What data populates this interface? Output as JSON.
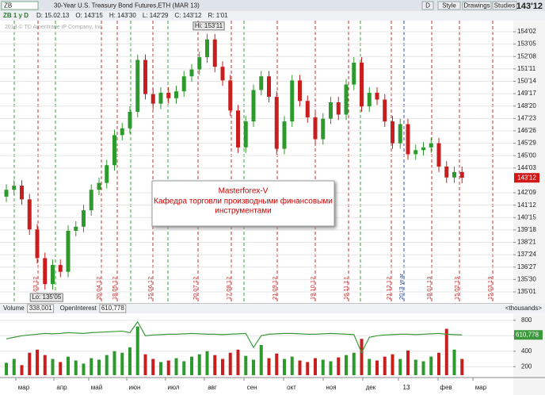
{
  "toolbar": {
    "symbol": "ZB",
    "description": "30-Year U.S. Treasury Bond Futures,ETH (MAR 13)",
    "buttons": [
      "D",
      "Style",
      "Drawings",
      "Studies"
    ],
    "last": "143'12"
  },
  "info": {
    "symbol": "ZB 1 y D",
    "items": [
      "D: 15.02.13",
      "O: 143'15",
      "H: 143'30",
      "L: 142'29",
      "C: 143'12",
      "R: 1'01"
    ]
  },
  "watermark": "2013 © TD Ameritrade IP Company, Inc.",
  "annotation": [
    "Masterforex-V",
    "Кафедра торговли производными финансовыми",
    "инструментами"
  ],
  "chart_data": [
    {
      "type": "candlestick",
      "open": [
        142.0,
        142.5,
        142.8,
        141.8,
        139.6,
        137.5,
        135.6,
        137.0,
        136.5,
        139.5,
        139.8,
        141.0,
        142.5,
        143.0,
        144.3,
        146.5,
        147.0,
        148.2,
        152.0,
        149.5,
        148.8,
        149.6,
        149.2,
        149.7,
        150.8,
        151.3,
        152.2,
        153.5,
        151.5,
        150.5,
        148.3,
        145.6,
        147.5,
        149.8,
        150.8,
        149.3,
        145.5,
        147.5,
        150.5,
        149.0,
        147.8,
        146.2,
        147.7,
        148.9,
        148.0,
        150.2,
        151.8,
        148.6,
        149.6,
        149.1,
        147.5,
        145.9,
        147.3,
        145.1,
        145.4,
        145.6,
        145.9,
        144.2,
        143.4,
        143.8
      ],
      "high": [
        142.9,
        143.2,
        143.2,
        142.2,
        140.0,
        137.9,
        137.4,
        137.4,
        139.9,
        140.2,
        141.4,
        142.9,
        143.4,
        144.7,
        146.9,
        147.4,
        148.6,
        152.4,
        152.4,
        149.9,
        150.0,
        150.0,
        150.1,
        151.2,
        151.7,
        152.6,
        153.9,
        153.9,
        151.9,
        150.9,
        148.7,
        147.9,
        150.2,
        151.2,
        151.2,
        149.7,
        147.9,
        150.9,
        150.9,
        149.4,
        148.2,
        148.1,
        149.3,
        149.3,
        150.6,
        152.2,
        152.2,
        150.0,
        150.0,
        149.5,
        147.9,
        147.7,
        147.7,
        145.8,
        146.0,
        146.3,
        146.3,
        144.6,
        144.2,
        144.2
      ],
      "low": [
        141.6,
        142.1,
        141.4,
        139.2,
        137.1,
        135.2,
        135.2,
        136.1,
        136.1,
        139.1,
        139.4,
        140.6,
        142.1,
        142.6,
        143.9,
        146.1,
        146.6,
        147.8,
        149.1,
        148.4,
        148.4,
        148.8,
        148.8,
        149.3,
        150.4,
        150.9,
        151.8,
        151.1,
        150.1,
        147.9,
        145.2,
        145.2,
        147.1,
        149.4,
        148.9,
        145.1,
        145.1,
        147.1,
        148.6,
        147.4,
        145.8,
        145.8,
        147.3,
        147.6,
        147.6,
        149.8,
        148.2,
        148.2,
        148.7,
        147.1,
        145.5,
        145.5,
        144.7,
        144.7,
        145.0,
        145.2,
        143.8,
        143.0,
        143.0,
        142.98
      ],
      "close": [
        142.5,
        142.8,
        141.8,
        139.6,
        137.5,
        135.6,
        137.0,
        136.5,
        139.5,
        139.8,
        141.0,
        142.5,
        143.0,
        144.3,
        146.5,
        147.0,
        148.2,
        152.0,
        149.5,
        148.8,
        149.6,
        149.2,
        149.7,
        150.8,
        151.3,
        152.2,
        153.5,
        151.5,
        150.5,
        148.3,
        145.6,
        147.5,
        149.8,
        150.8,
        149.3,
        145.5,
        147.5,
        150.5,
        149.0,
        147.8,
        146.2,
        147.7,
        148.9,
        148.0,
        150.2,
        151.8,
        148.6,
        149.6,
        149.1,
        147.5,
        145.9,
        147.3,
        145.1,
        145.4,
        145.6,
        145.9,
        144.2,
        143.4,
        143.8,
        143.38
      ],
      "up_color": "#2e9a2e",
      "down_color": "#c81e1e",
      "ylim": [
        134.16,
        154.875
      ],
      "yticks": [
        {
          "value": 154.0625,
          "label": "154'02"
        },
        {
          "value": 153.15625,
          "label": "153'05"
        },
        {
          "value": 152.25,
          "label": "152'08"
        },
        {
          "value": 151.34375,
          "label": "151'11"
        },
        {
          "value": 150.4375,
          "label": "150'14"
        },
        {
          "value": 149.53125,
          "label": "149'17"
        },
        {
          "value": 148.625,
          "label": "148'20"
        },
        {
          "value": 147.71875,
          "label": "147'23"
        },
        {
          "value": 146.8125,
          "label": "146'26"
        },
        {
          "value": 145.90625,
          "label": "145'29"
        },
        {
          "value": 145.0,
          "label": "145'00"
        },
        {
          "value": 144.09375,
          "label": "144'03"
        },
        {
          "value": 142.28125,
          "label": "142'09"
        },
        {
          "value": 141.375,
          "label": "141'12"
        },
        {
          "value": 140.46875,
          "label": "140'15"
        },
        {
          "value": 139.5625,
          "label": "139'18"
        },
        {
          "value": 138.65625,
          "label": "138'21"
        },
        {
          "value": 137.75,
          "label": "137'24"
        },
        {
          "value": 136.84375,
          "label": "136'27"
        },
        {
          "value": 135.9375,
          "label": "135'30"
        },
        {
          "value": 135.03125,
          "label": "135'01"
        }
      ],
      "last_price": {
        "value": 143.375,
        "label": "143'12"
      },
      "extremes": [
        "Hi: 153'11",
        "Lo: 135'05"
      ],
      "markers": [
        "16.03.12",
        "20.04.12",
        "18.05.12",
        "15.06.12",
        "20.07.12",
        "17.08.12",
        "21.09.12",
        "19.10.12",
        "16.11.12",
        "21.12.12",
        "2013 year",
        "18.01.13",
        "15.02.13",
        "15.03.13"
      ]
    },
    {
      "type": "bar",
      "series": [
        {
          "name": "Volume",
          "last_label": "338,001",
          "up_color": "#2e9a2e",
          "down_color": "#c81e1e",
          "values": [
            250,
            300,
            220,
            380,
            420,
            350,
            300,
            260,
            330,
            280,
            240,
            310,
            290,
            350,
            400,
            380,
            450,
            720,
            360,
            300,
            260,
            280,
            310,
            270,
            330,
            360,
            400,
            350,
            300,
            380,
            420,
            340,
            290,
            480,
            310,
            370,
            300,
            330,
            280,
            260,
            310,
            290,
            270,
            320,
            350,
            380,
            560,
            300,
            280,
            330,
            360,
            300,
            410,
            290,
            270,
            330,
            380,
            690,
            420,
            300
          ]
        },
        {
          "name": "OpenInterest",
          "last_label": "610,778",
          "color": "#3c9a3c",
          "values": [
            560,
            580,
            600,
            610,
            620,
            630,
            625,
            630,
            640,
            635,
            630,
            640,
            645,
            650,
            655,
            660,
            640,
            780,
            600,
            610,
            615,
            620,
            620,
            625,
            630,
            625,
            620,
            620,
            615,
            620,
            625,
            630,
            450,
            600,
            620,
            625,
            630,
            630,
            625,
            620,
            620,
            625,
            630,
            625,
            620,
            615,
            380,
            580,
            600,
            610,
            615,
            620,
            620,
            615,
            620,
            625,
            630,
            620,
            615,
            610.778
          ]
        }
      ],
      "ylim": [
        90,
        870
      ],
      "yticks": [
        200,
        400,
        600,
        800
      ],
      "unit": "<thousands>",
      "month_labels": [
        "мар",
        "апр",
        "май",
        "июн",
        "июл",
        "авг",
        "сен",
        "окт",
        "ноя",
        "дек",
        "13",
        "фев",
        "мар"
      ]
    }
  ]
}
